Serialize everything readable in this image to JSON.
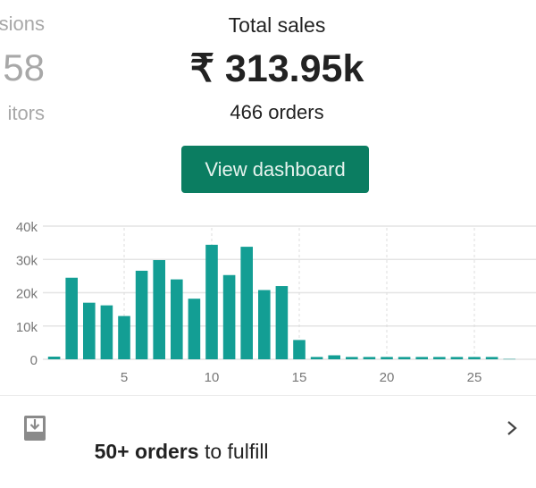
{
  "left_metric": {
    "label": "sions",
    "value": "58",
    "sublabel": "itors"
  },
  "total_sales": {
    "label": "Total sales",
    "value": "₹ 313.95k",
    "orders": "466 orders"
  },
  "view_dashboard_label": "View dashboard",
  "chart_data": {
    "type": "bar",
    "x": [
      1,
      2,
      3,
      4,
      5,
      6,
      7,
      8,
      9,
      10,
      11,
      12,
      13,
      14,
      15,
      16,
      17,
      18,
      19,
      20,
      21,
      22,
      23,
      24,
      25,
      26,
      27
    ],
    "values": [
      800,
      24500,
      17000,
      16200,
      13000,
      26600,
      29800,
      24000,
      18200,
      34400,
      25300,
      33800,
      20800,
      22000,
      5800,
      700,
      1200,
      700,
      700,
      700,
      700,
      700,
      700,
      700,
      700,
      700,
      100
    ],
    "ylim": [
      0,
      40000
    ],
    "yticks": [
      "0",
      "10k",
      "20k",
      "30k",
      "40k"
    ],
    "xticks": [
      "5",
      "10",
      "15",
      "20",
      "25"
    ],
    "grid": true,
    "bar_color": "#139e94"
  },
  "fulfill": {
    "count": "50+ orders",
    "text": " to fulfill",
    "icon": "inbox-download-icon",
    "chevron": "chevron-right-icon"
  }
}
